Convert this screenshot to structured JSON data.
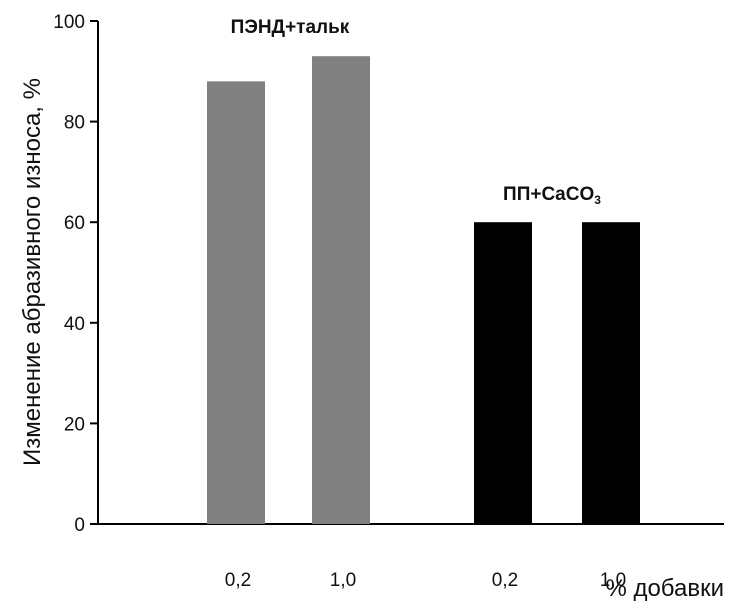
{
  "chart_data": {
    "type": "bar",
    "ylabel": "Изменение абразивного износа, %",
    "xlabel": "% добавки",
    "ylim": [
      0,
      100
    ],
    "yticks": [
      0,
      20,
      40,
      60,
      80,
      100
    ],
    "grid": false,
    "groups": [
      {
        "label": "ПЭНД+тальк",
        "color": "#808080",
        "categories": [
          "0,2",
          "1,0"
        ],
        "values": [
          88,
          93
        ]
      },
      {
        "label": "ПП+CaCO",
        "label_subscript": "3",
        "color": "#000000",
        "categories": [
          "0,2",
          "1,0"
        ],
        "values": [
          60,
          60
        ]
      }
    ]
  }
}
